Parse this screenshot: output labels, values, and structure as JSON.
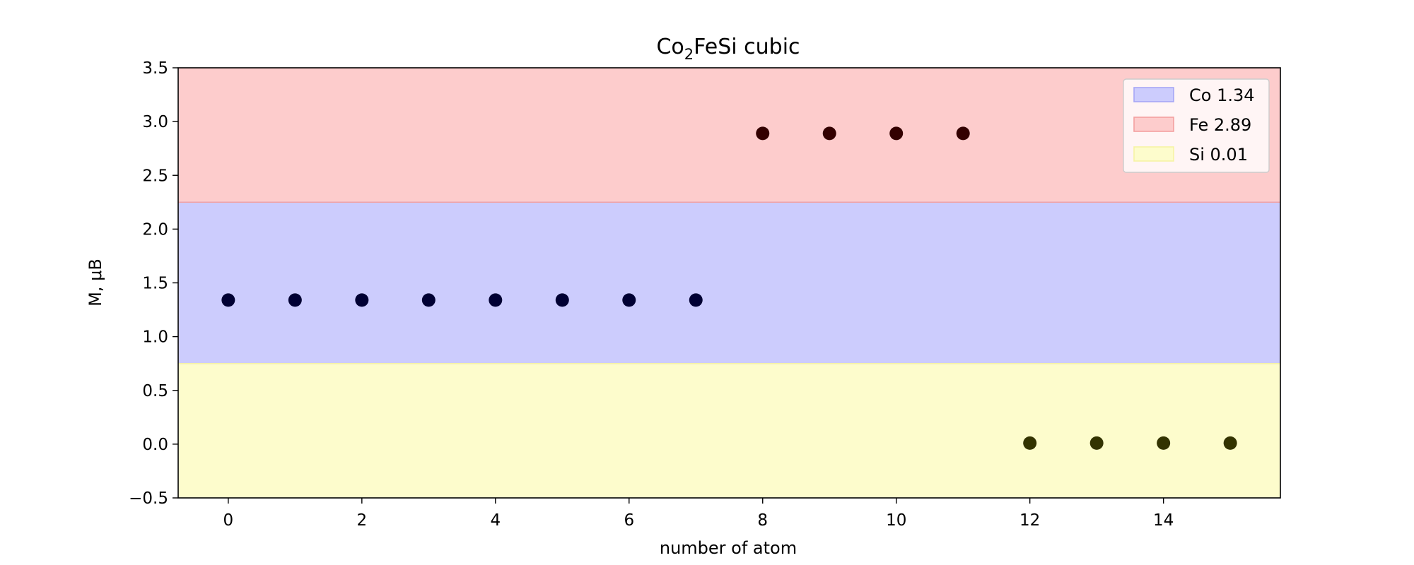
{
  "chart_data": {
    "type": "scatter",
    "title": {
      "prefix": "Co",
      "subscript": "2",
      "suffix": "FeSi cubic"
    },
    "xlabel": "number of atom",
    "ylabel": "M, μB",
    "xlim": [
      -0.75,
      15.75
    ],
    "ylim": [
      -0.5,
      3.5
    ],
    "xticks": [
      0,
      2,
      4,
      6,
      8,
      10,
      12,
      14
    ],
    "yticks": [
      -0.5,
      0.0,
      0.5,
      1.0,
      1.5,
      2.0,
      2.5,
      3.0,
      3.5
    ],
    "ytick_labels": [
      "−0.5",
      "0.0",
      "0.5",
      "1.0",
      "1.5",
      "2.0",
      "2.5",
      "3.0",
      "3.5"
    ],
    "grid": false,
    "legend_position": "top-right",
    "bands": [
      {
        "label": "Co 1.34",
        "ymin": 0.75,
        "ymax": 2.25,
        "color": "#ccccfd"
      },
      {
        "label": "Fe 2.89",
        "ymin": 2.25,
        "ymax": 3.5,
        "color": "#fdcccc"
      },
      {
        "label": "Si 0.01",
        "ymin": -0.5,
        "ymax": 0.75,
        "color": "#fdfccc"
      }
    ],
    "band_edge_colors": {
      "Co": "#a6a6f6",
      "Fe": "#f3a0a0",
      "Si": "#f6f3a5"
    },
    "series": [
      {
        "name": "Co",
        "color": "#000033",
        "x": [
          0,
          1,
          2,
          3,
          4,
          5,
          6,
          7
        ],
        "y": [
          1.34,
          1.34,
          1.34,
          1.34,
          1.34,
          1.34,
          1.34,
          1.34
        ]
      },
      {
        "name": "Fe",
        "color": "#330000",
        "x": [
          8,
          9,
          10,
          11
        ],
        "y": [
          2.89,
          2.89,
          2.89,
          2.89
        ]
      },
      {
        "name": "Si",
        "color": "#333300",
        "x": [
          12,
          13,
          14,
          15
        ],
        "y": [
          0.01,
          0.01,
          0.01,
          0.01
        ]
      }
    ]
  }
}
